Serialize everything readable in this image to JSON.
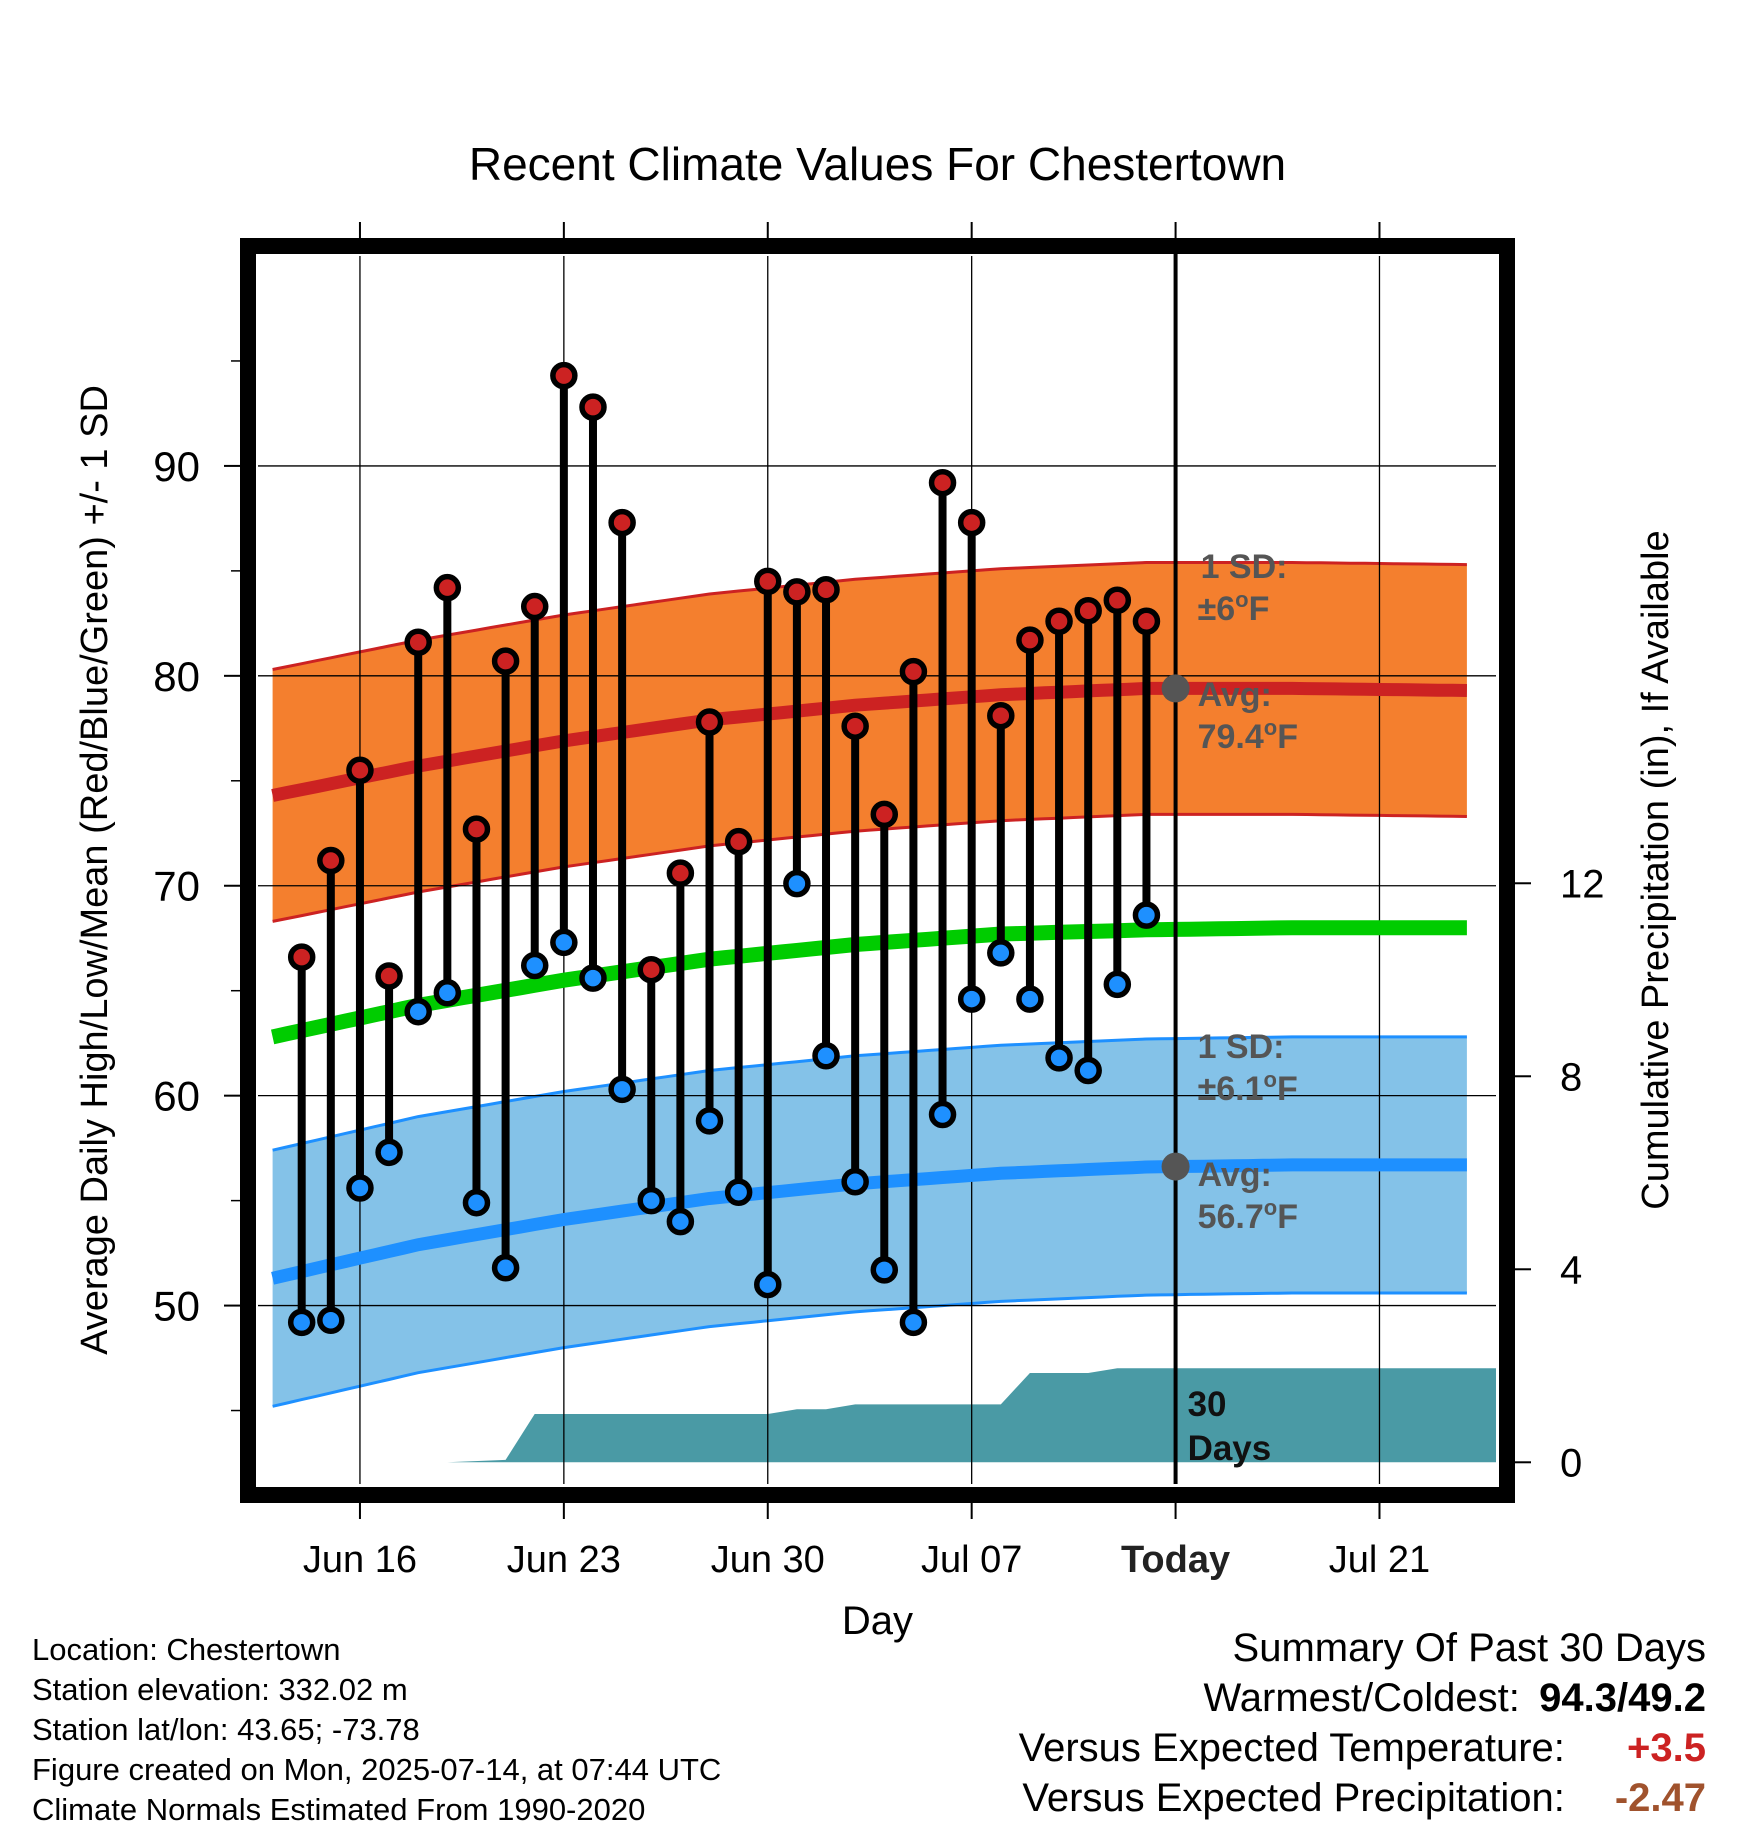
{
  "colors": {
    "high": "#cc2222",
    "low": "#1e90ff",
    "mean": "#00cc00",
    "high_band": "#f47f2e",
    "low_band": "#84c2e8",
    "precip": "#4a9aa5",
    "annotation": "#555555",
    "warm_anomaly": "#cc2222",
    "precip_anomaly": "#a0522d"
  },
  "chart_data": {
    "type": "line",
    "title": "Recent Climate Values For Chestertown",
    "xlabel": "Day",
    "ylabel_left": "Average Daily High/Low/Mean (Red/Blue/Green) +/- 1 SD",
    "ylabel_right": "Cumulative Precipitation (in), If Available",
    "x_tick_labels": [
      "Jun 16",
      "Jun 23",
      "Jun 30",
      "Jul 07",
      "Today",
      "Jul 21"
    ],
    "x_tick_days": [
      3,
      10,
      17,
      24,
      31,
      38
    ],
    "x_range_days": [
      -0.5,
      42
    ],
    "y_left_ticks": [
      50,
      60,
      70,
      80,
      90
    ],
    "y_left_range": [
      41.5,
      100
    ],
    "y_right_ticks": [
      0,
      4,
      8,
      12
    ],
    "y_right_range": [
      -0.45,
      25
    ],
    "grid": true,
    "daily_days": [
      1,
      2,
      3,
      4,
      5,
      6,
      7,
      8,
      9,
      10,
      11,
      12,
      13,
      14,
      15,
      16,
      17,
      18,
      19,
      20,
      21,
      22,
      23,
      24,
      25,
      26,
      27,
      28,
      29,
      30
    ],
    "daily_high": [
      66.6,
      71.2,
      75.5,
      65.7,
      81.6,
      84.2,
      72.7,
      80.7,
      83.3,
      94.3,
      92.8,
      87.3,
      66.0,
      70.6,
      77.8,
      72.1,
      84.5,
      84.0,
      84.1,
      77.6,
      73.4,
      80.2,
      89.2,
      87.3,
      78.1,
      81.7,
      82.6,
      83.1,
      83.6,
      82.6
    ],
    "daily_low": [
      49.2,
      49.3,
      55.6,
      57.3,
      64.0,
      64.9,
      54.9,
      51.8,
      66.2,
      67.3,
      65.6,
      60.3,
      55.0,
      54.0,
      58.8,
      55.4,
      51.0,
      70.1,
      61.9,
      55.9,
      51.7,
      49.2,
      59.1,
      64.6,
      66.8,
      64.6,
      61.8,
      61.2,
      65.3,
      68.6
    ],
    "normal_days": [
      0,
      5,
      10,
      15,
      20,
      25,
      30,
      35,
      41
    ],
    "normal_high": [
      74.3,
      75.7,
      76.9,
      77.9,
      78.6,
      79.1,
      79.4,
      79.4,
      79.3
    ],
    "normal_high_sd": 6,
    "normal_low": [
      51.3,
      52.9,
      54.1,
      55.1,
      55.8,
      56.3,
      56.6,
      56.7,
      56.7
    ],
    "normal_low_sd": 6.1,
    "normal_mean": [
      62.8,
      64.3,
      65.5,
      66.5,
      67.2,
      67.7,
      67.9,
      68.0,
      68.0
    ],
    "precip_days": [
      6,
      8,
      9,
      17,
      18,
      19,
      20,
      25,
      26,
      27,
      28,
      29,
      30,
      31,
      42
    ],
    "precip_cum": [
      0.0,
      0.05,
      1.0,
      1.0,
      1.1,
      1.1,
      1.2,
      1.2,
      1.85,
      1.85,
      1.85,
      1.95,
      1.95,
      1.95,
      1.95
    ],
    "today_day": 31,
    "annotations": {
      "high_sd_label": "1 SD:",
      "high_sd_value": "±6",
      "high_avg_label": "Avg:",
      "high_avg_value": "79.4",
      "low_sd_label": "1 SD:",
      "low_sd_value": "±6.1",
      "low_avg_label": "Avg:",
      "low_avg_value": "56.7",
      "degree_sign": "o",
      "unit": "F",
      "precip_window_line1": "30",
      "precip_window_line2": "Days"
    }
  },
  "station_info": {
    "location": "Location: Chestertown",
    "elevation": "Station elevation: 332.02 m",
    "latlon": "Station lat/lon: 43.65; -73.78",
    "created": "Figure created on Mon, 2025-07-14, at 07:44 UTC",
    "normals": "Climate Normals Estimated From 1990-2020"
  },
  "summary": {
    "title": "Summary Of Past 30 Days",
    "warm_cold_label": "Warmest/Coldest:",
    "warm_cold_value": "94.3/49.2",
    "temp_label": "Versus Expected Temperature:",
    "temp_value": "+3.5",
    "precip_label": "Versus Expected Precipitation:",
    "precip_value": "-2.47"
  }
}
